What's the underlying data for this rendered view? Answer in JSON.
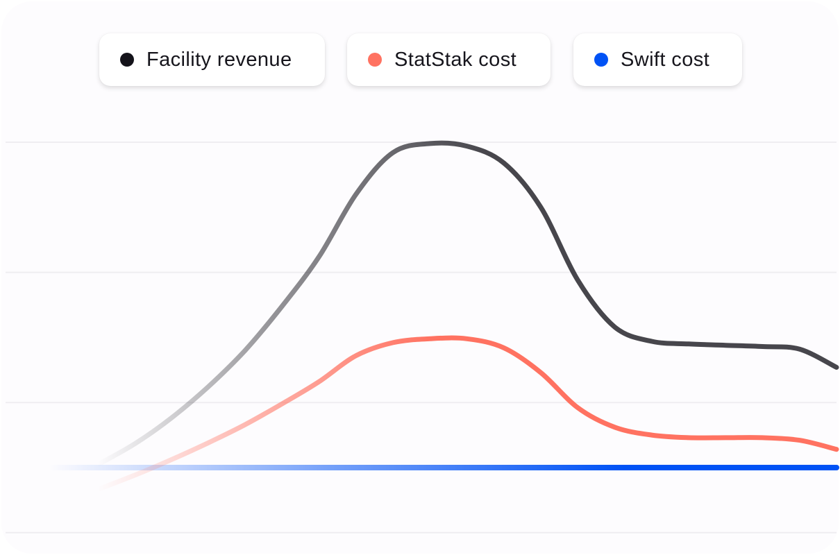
{
  "chart_data": {
    "type": "line",
    "title": "",
    "xlabel": "",
    "ylabel": "",
    "grid": true,
    "legend_position": "top-center",
    "x": [
      0,
      1,
      2,
      3,
      4,
      5,
      6,
      7,
      8,
      9,
      10,
      11,
      12,
      13,
      14,
      15,
      16,
      17,
      18,
      19,
      20
    ],
    "xlim": [
      0,
      20
    ],
    "ylim": [
      -0.6,
      2.6
    ],
    "gridlines": [
      -0.5,
      0.5,
      1.5,
      2.5
    ],
    "series": [
      {
        "name": "Facility revenue",
        "color": "#14131a",
        "values": [
          0.02,
          0.18,
          0.38,
          0.62,
          0.9,
          1.24,
          1.62,
          2.1,
          2.42,
          2.49,
          2.47,
          2.34,
          2.0,
          1.44,
          1.08,
          0.97,
          0.95,
          0.94,
          0.93,
          0.91,
          0.77
        ]
      },
      {
        "name": "StatStak cost",
        "color": "#ff7261",
        "values": [
          -0.17,
          -0.06,
          0.06,
          0.19,
          0.33,
          0.49,
          0.66,
          0.86,
          0.96,
          0.99,
          0.99,
          0.92,
          0.73,
          0.46,
          0.31,
          0.25,
          0.23,
          0.23,
          0.23,
          0.21,
          0.14
        ]
      },
      {
        "name": "Swift cost",
        "color": "#0052f5",
        "values": [
          0.0,
          0.0,
          0.0,
          0.0,
          0.0,
          0.0,
          0.0,
          0.0,
          0.0,
          0.0,
          0.0,
          0.0,
          0.0,
          0.0,
          0.0,
          0.0,
          0.0,
          0.0,
          0.0,
          0.0,
          0.0
        ]
      }
    ]
  }
}
